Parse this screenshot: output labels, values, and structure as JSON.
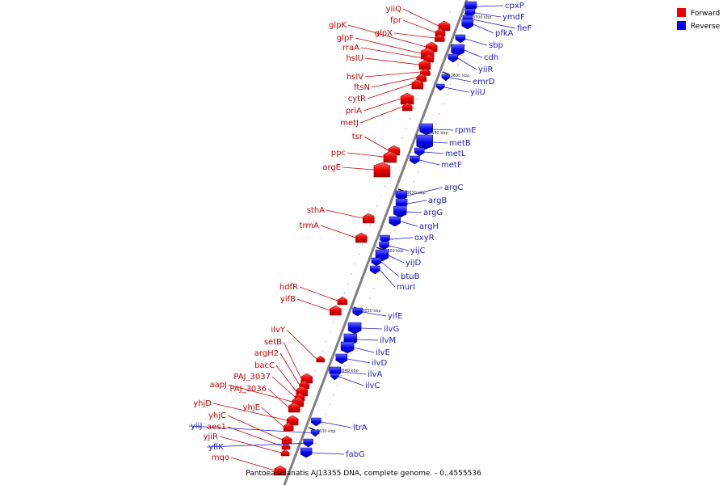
{
  "caption": "Pantoea ananatis AJ13355 DNA, complete genome. - 0..4555536",
  "legend": [
    {
      "label": "Forward",
      "color": "#ee0000"
    },
    {
      "label": "Reverse",
      "color": "#0000ee"
    }
  ],
  "ticks": [
    "3700 kbp",
    "3690 kbp",
    "3680 kbp",
    "3670 kbp",
    "3660 kbp",
    "3650 kbp",
    "3640 kbp",
    "3630 kbp"
  ],
  "forward_genes": [
    "yiiQ",
    "fpr",
    "glpX",
    "glpK",
    "glpF",
    "rraA",
    "hslU",
    "hslV",
    "ftsN",
    "cytR",
    "priA",
    "metJ",
    "tsr",
    "ppc",
    "argE",
    "sthA",
    "trmA",
    "hdfR",
    "yifB",
    "ilvY",
    "setB",
    "argH2",
    "bacC",
    "PAJ_3037",
    "aapJ",
    "PAJ_3036",
    "yhjD",
    "yhjE",
    "yhjC",
    "aes1",
    "yjiR",
    "mqo"
  ],
  "reverse_genes": [
    "cpxP",
    "ymdF",
    "fieF",
    "pfkA",
    "sbp",
    "cdh",
    "yiiR",
    "emrD",
    "yiiU",
    "rpmE",
    "metB",
    "metL",
    "metF",
    "argC",
    "argB",
    "argG",
    "argH",
    "oxyR",
    "yijC",
    "yijD",
    "btuB",
    "murI",
    "yifE",
    "ilvG",
    "ilvM",
    "ilvE",
    "ilvD",
    "ilvA",
    "ilvC",
    "yiiJ",
    "ltrA",
    "yfiK",
    "fabG"
  ]
}
